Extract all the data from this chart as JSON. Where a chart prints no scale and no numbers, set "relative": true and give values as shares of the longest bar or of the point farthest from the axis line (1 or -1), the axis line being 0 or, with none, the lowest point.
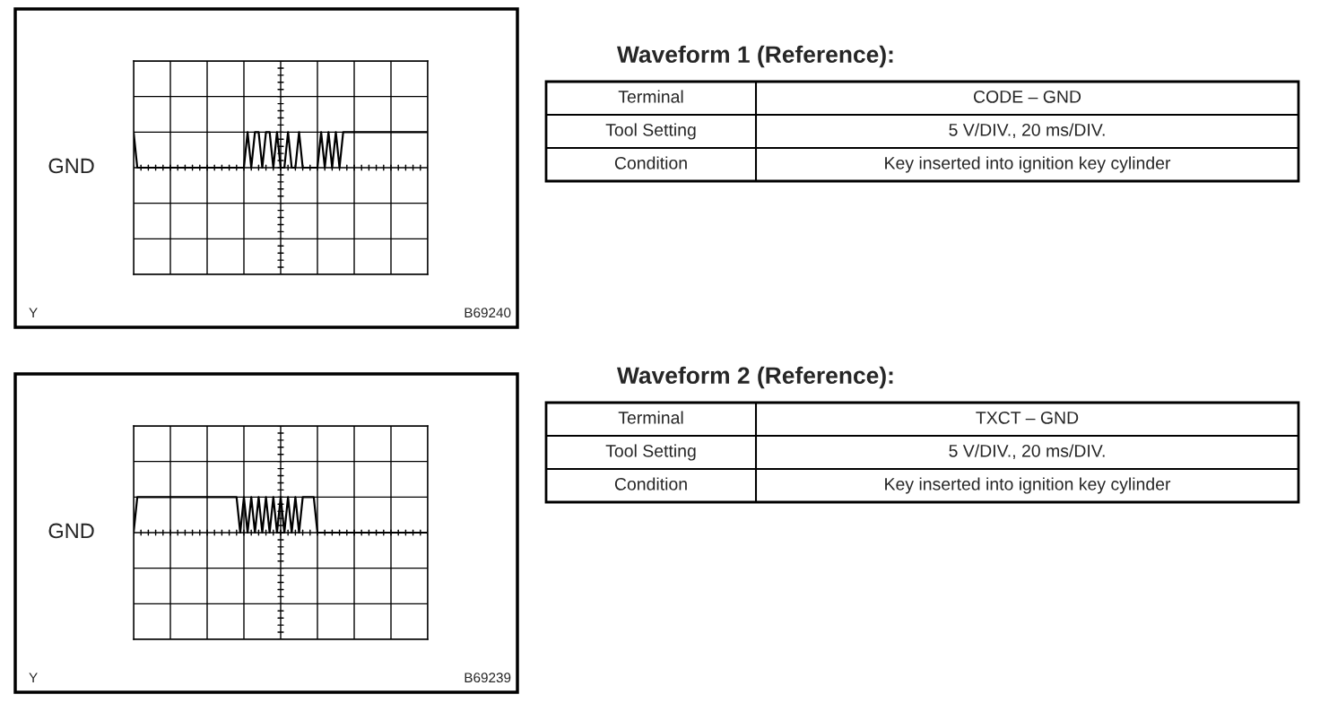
{
  "chart_data": [
    {
      "type": "line",
      "relative": true,
      "categories": [
        null,
        null,
        null,
        null,
        null,
        null,
        null,
        null,
        null,
        null,
        null,
        null,
        null,
        null,
        null,
        null,
        null,
        null,
        null,
        null,
        null,
        null,
        null,
        null,
        null,
        null,
        null,
        null,
        null,
        null,
        null,
        null,
        null,
        null,
        null,
        null,
        null,
        null,
        null,
        null,
        null,
        null,
        null,
        null,
        null,
        null,
        null,
        null,
        null,
        null,
        null,
        null,
        null,
        null,
        null,
        null,
        null,
        null,
        null,
        null,
        null,
        null,
        null,
        null,
        null,
        null,
        null,
        null,
        null,
        null,
        null,
        null,
        null,
        null,
        null,
        null,
        null,
        null,
        null,
        null,
        null
      ],
      "grid": true,
      "annotations": [
        "GND",
        "Y",
        "B69240"
      ],
      "series": [
        {
          "color": "#000000",
          "values": [
            1,
            0,
            0,
            0,
            0,
            0,
            0,
            0,
            0,
            0,
            0,
            0,
            0,
            0,
            0,
            0,
            0,
            0,
            0,
            0,
            0,
            0,
            0,
            0,
            0,
            0,
            0,
            0,
            0,
            0,
            0,
            1,
            0,
            1,
            1,
            0,
            1,
            1,
            0,
            1,
            0,
            0,
            1,
            0,
            0,
            1,
            0,
            0,
            0,
            0,
            0,
            1,
            0,
            1,
            0,
            1,
            0,
            1,
            1,
            1,
            1,
            1,
            1,
            1,
            1,
            1,
            1,
            1,
            1,
            1,
            1,
            1,
            1,
            1,
            1,
            1,
            1,
            1,
            1,
            1,
            1
          ]
        }
      ]
    },
    {
      "type": "other",
      "title": "Waveform 1 (Reference):",
      "categories": [
        "Terminal",
        "Tool Setting",
        "Condition"
      ],
      "annotations": [
        "CODE – GND",
        "5 V/DIV., 20 ms/DIV.",
        "Key inserted into ignition key cylinder"
      ]
    },
    {
      "type": "line",
      "relative": true,
      "categories": [
        null,
        null,
        null,
        null,
        null,
        null,
        null,
        null,
        null,
        null,
        null,
        null,
        null,
        null,
        null,
        null,
        null,
        null,
        null,
        null,
        null,
        null,
        null,
        null,
        null,
        null,
        null,
        null,
        null,
        null,
        null,
        null,
        null,
        null,
        null,
        null,
        null,
        null,
        null,
        null,
        null,
        null,
        null,
        null,
        null,
        null,
        null,
        null,
        null,
        null,
        null,
        null,
        null,
        null,
        null,
        null,
        null,
        null,
        null,
        null,
        null,
        null,
        null,
        null,
        null,
        null,
        null,
        null,
        null,
        null,
        null,
        null,
        null,
        null,
        null,
        null,
        null,
        null,
        null,
        null,
        null
      ],
      "grid": true,
      "annotations": [
        "GND",
        "Y",
        "B69239"
      ],
      "series": [
        {
          "color": "#000000",
          "values": [
            0,
            1,
            1,
            1,
            1,
            1,
            1,
            1,
            1,
            1,
            1,
            1,
            1,
            1,
            1,
            1,
            1,
            1,
            1,
            1,
            1,
            1,
            1,
            1,
            1,
            1,
            1,
            1,
            1,
            0,
            1,
            0,
            1,
            0,
            1,
            0,
            1,
            0,
            1,
            0,
            1,
            0,
            1,
            0,
            1,
            0,
            1,
            1,
            1,
            1,
            0,
            0,
            0,
            0,
            0,
            0,
            0,
            0,
            0,
            0,
            0,
            0,
            0,
            0,
            0,
            0,
            0,
            0,
            0,
            0,
            0,
            0,
            0,
            0,
            0,
            0,
            0,
            0,
            0,
            0,
            0
          ]
        }
      ]
    },
    {
      "type": "other",
      "title": "Waveform 2 (Reference):",
      "categories": [
        "Terminal",
        "Tool Setting",
        "Condition"
      ],
      "annotations": [
        "TXCT – GND",
        "5 V/DIV., 20 ms/DIV.",
        "Key inserted into ignition key cylinder"
      ]
    }
  ]
}
